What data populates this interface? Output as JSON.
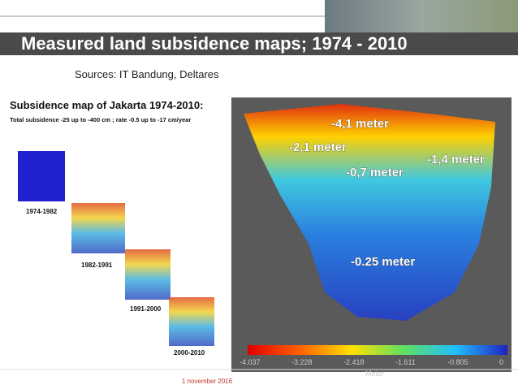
{
  "header": {
    "title": "Measured land subsidence maps; 1974 - 2010",
    "sources": "Sources: IT Bandung, Deltares"
  },
  "left_panel": {
    "heading": "Subsidence map of Jakarta 1974-2010:",
    "subheading": "Total subsidence -25 up to -400 cm ; rate -0.5 up to -17 cm/year",
    "periods": [
      "1974-1982",
      "1982-1991",
      "1991-2000",
      "2000-2010"
    ]
  },
  "map": {
    "labels": [
      "-4,1 meter",
      "-2,1 meter",
      "-0,7 meter",
      "-1,4 meter",
      "-0.25 meter"
    ],
    "colorbar_ticks": [
      "-4.037",
      "-3.228",
      "-2.418",
      "-1.611",
      "-0.805",
      "0"
    ],
    "colorbar_unit": "Meter"
  },
  "footer": {
    "date": "1 november 2016"
  }
}
